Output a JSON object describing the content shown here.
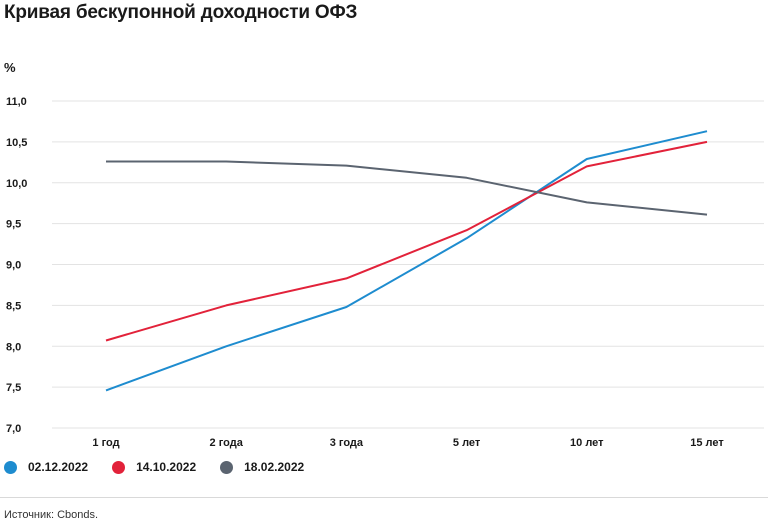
{
  "chart_data": {
    "type": "line",
    "title": "Кривая бескупонной доходности ОФЗ",
    "ylabel": "%",
    "categories": [
      "1 год",
      "2 года",
      "3 года",
      "5 лет",
      "10 лет",
      "15 лет"
    ],
    "ylim": [
      7.0,
      11.0
    ],
    "yticks": [
      "11,0",
      "10,5",
      "10,0",
      "9,5",
      "9,0",
      "8,5",
      "8,0",
      "7,5",
      "7,0"
    ],
    "yticks_values": [
      11.0,
      10.5,
      10.0,
      9.5,
      9.0,
      8.5,
      8.0,
      7.5,
      7.0
    ],
    "grid": true,
    "legend_position": "bottom",
    "series": [
      {
        "name": "02.12.2022",
        "color": "#1e8ccf",
        "values": [
          7.46,
          8.0,
          8.48,
          9.32,
          10.29,
          10.63
        ]
      },
      {
        "name": "14.10.2022",
        "color": "#e2223a",
        "values": [
          8.07,
          8.5,
          8.83,
          9.42,
          10.2,
          10.5
        ]
      },
      {
        "name": "18.02.2022",
        "color": "#5b6470",
        "values": [
          10.26,
          10.26,
          10.21,
          10.06,
          9.76,
          9.61
        ]
      }
    ]
  },
  "source": "Источник: Cbonds."
}
